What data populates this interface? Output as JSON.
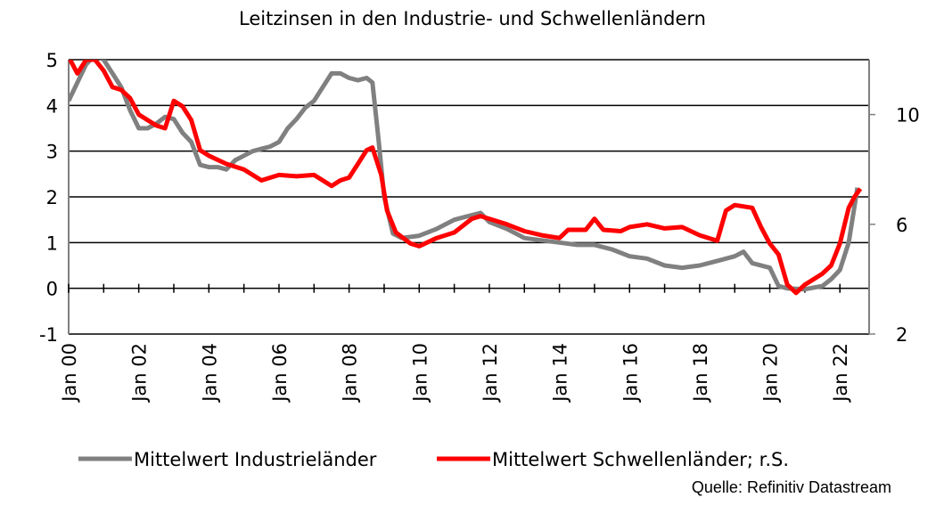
{
  "chart_data": {
    "type": "line",
    "title": "Leitzinsen in den Industrie- und Schwellenländern",
    "source": "Quelle: Refinitiv Datastream",
    "xlim": [
      "2000-01",
      "2022-11"
    ],
    "xticks": [
      {
        "value": "2000-01",
        "label": "Jan 00"
      },
      {
        "value": "2002-01",
        "label": "Jan 02"
      },
      {
        "value": "2004-01",
        "label": "Jan 04"
      },
      {
        "value": "2006-01",
        "label": "Jan 06"
      },
      {
        "value": "2008-01",
        "label": "Jan 08"
      },
      {
        "value": "2010-01",
        "label": "Jan 10"
      },
      {
        "value": "2012-01",
        "label": "Jan 12"
      },
      {
        "value": "2014-01",
        "label": "Jan 14"
      },
      {
        "value": "2016-01",
        "label": "Jan 16"
      },
      {
        "value": "2018-01",
        "label": "Jan 18"
      },
      {
        "value": "2020-01",
        "label": "Jan 20"
      },
      {
        "value": "2022-01",
        "label": "Jan 22"
      }
    ],
    "ylim": [
      -1,
      5
    ],
    "yticks": [
      -1,
      0,
      1,
      2,
      3,
      4,
      5
    ],
    "y2lim": [
      2,
      12
    ],
    "y2ticks": [
      2,
      6,
      10
    ],
    "grid": true,
    "legend": "bottom",
    "series": [
      {
        "name": "Mittelwert Industrieländer",
        "color": "#808080",
        "x": [
          "2000-01",
          "2000-04",
          "2000-07",
          "2000-10",
          "2001-01",
          "2001-04",
          "2001-07",
          "2001-10",
          "2002-01",
          "2002-04",
          "2002-07",
          "2002-10",
          "2003-01",
          "2003-04",
          "2003-07",
          "2003-10",
          "2004-01",
          "2004-04",
          "2004-07",
          "2004-10",
          "2005-01",
          "2005-04",
          "2005-07",
          "2005-10",
          "2006-01",
          "2006-04",
          "2006-07",
          "2006-10",
          "2007-01",
          "2007-04",
          "2007-07",
          "2007-10",
          "2008-01",
          "2008-04",
          "2008-07",
          "2008-09",
          "2008-11",
          "2009-01",
          "2009-04",
          "2009-07",
          "2010-01",
          "2010-07",
          "2011-01",
          "2011-07",
          "2011-10",
          "2012-01",
          "2012-07",
          "2013-01",
          "2013-07",
          "2014-01",
          "2014-07",
          "2015-01",
          "2015-07",
          "2016-01",
          "2016-07",
          "2017-01",
          "2017-07",
          "2018-01",
          "2018-07",
          "2019-01",
          "2019-04",
          "2019-07",
          "2020-01",
          "2020-04",
          "2020-07",
          "2021-01",
          "2021-07",
          "2021-10",
          "2022-01",
          "2022-04",
          "2022-07"
        ],
        "values": [
          4.1,
          4.5,
          4.9,
          5.1,
          5.0,
          4.7,
          4.4,
          3.9,
          3.5,
          3.5,
          3.6,
          3.75,
          3.7,
          3.4,
          3.2,
          2.7,
          2.65,
          2.65,
          2.6,
          2.8,
          2.9,
          3.0,
          3.05,
          3.1,
          3.2,
          3.5,
          3.7,
          3.95,
          4.1,
          4.4,
          4.7,
          4.7,
          4.6,
          4.55,
          4.6,
          4.5,
          3.3,
          2.0,
          1.2,
          1.1,
          1.15,
          1.3,
          1.5,
          1.6,
          1.65,
          1.45,
          1.3,
          1.1,
          1.05,
          1.0,
          0.95,
          0.95,
          0.85,
          0.7,
          0.65,
          0.5,
          0.45,
          0.5,
          0.6,
          0.7,
          0.8,
          0.55,
          0.45,
          0.05,
          0.0,
          -0.02,
          0.05,
          0.2,
          0.4,
          1.0,
          2.2
        ]
      },
      {
        "name": "Mittelwert Schwellenländer; r.S.",
        "color": "#ff0000",
        "axis": "y2",
        "x": [
          "2000-01",
          "2000-04",
          "2000-07",
          "2000-10",
          "2001-01",
          "2001-04",
          "2001-07",
          "2001-10",
          "2002-01",
          "2002-04",
          "2002-07",
          "2002-10",
          "2003-01",
          "2003-04",
          "2003-07",
          "2003-10",
          "2004-01",
          "2004-07",
          "2005-01",
          "2005-07",
          "2006-01",
          "2006-07",
          "2007-01",
          "2007-07",
          "2007-10",
          "2008-01",
          "2008-04",
          "2008-07",
          "2008-09",
          "2008-12",
          "2009-02",
          "2009-05",
          "2009-10",
          "2010-01",
          "2010-07",
          "2011-01",
          "2011-07",
          "2011-10",
          "2012-01",
          "2012-07",
          "2013-01",
          "2013-07",
          "2014-01",
          "2014-04",
          "2014-10",
          "2015-01",
          "2015-04",
          "2015-10",
          "2016-01",
          "2016-07",
          "2017-01",
          "2017-07",
          "2018-01",
          "2018-07",
          "2018-10",
          "2019-01",
          "2019-07",
          "2019-10",
          "2020-01",
          "2020-04",
          "2020-07",
          "2020-10",
          "2021-01",
          "2021-07",
          "2021-10",
          "2022-01",
          "2022-04",
          "2022-06",
          "2022-08"
        ],
        "values": [
          12.1,
          11.5,
          12.0,
          12.0,
          11.6,
          11.0,
          10.9,
          10.6,
          10.0,
          9.8,
          9.6,
          9.5,
          10.5,
          10.3,
          9.8,
          8.7,
          8.5,
          8.2,
          8.0,
          7.6,
          7.8,
          7.75,
          7.8,
          7.4,
          7.6,
          7.7,
          8.2,
          8.7,
          8.8,
          7.8,
          6.5,
          5.7,
          5.3,
          5.2,
          5.5,
          5.7,
          6.2,
          6.3,
          6.2,
          6.0,
          5.75,
          5.6,
          5.5,
          5.8,
          5.8,
          6.2,
          5.8,
          5.75,
          5.9,
          6.0,
          5.85,
          5.9,
          5.6,
          5.4,
          6.5,
          6.7,
          6.6,
          5.9,
          5.3,
          4.9,
          3.8,
          3.5,
          3.8,
          4.2,
          4.5,
          5.3,
          6.6,
          7.0,
          7.3
        ]
      }
    ]
  }
}
